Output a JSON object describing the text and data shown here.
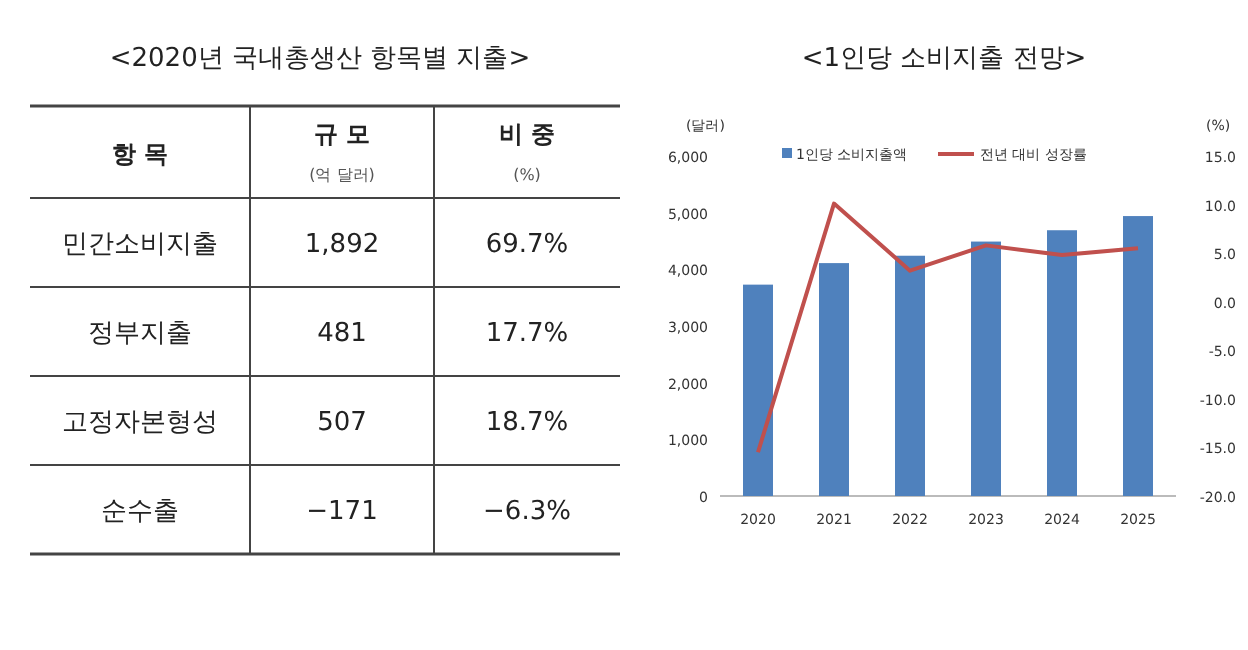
{
  "chart_data": [
    {
      "type": "other",
      "title": "<2020년 국내총생산 항목별 지출>",
      "xlabel": "항 목",
      "categories": [
        "민간소비지출",
        "정부지출",
        "고정자본형성",
        "순수출"
      ],
      "series": [
        {
          "name": "규 모",
          "values": [
            1892,
            481,
            507,
            -171
          ],
          "value_labels": [
            "1,892",
            "481",
            "507",
            "−171"
          ]
        },
        {
          "name": "비 중",
          "values": [
            69.7,
            17.7,
            18.7,
            -6.3
          ],
          "value_labels": [
            "69.7%",
            "17.7%",
            "18.7%",
            "−6.3%"
          ]
        }
      ],
      "annotations": [
        "(억 달러)",
        "(%)"
      ]
    },
    {
      "type": "bar",
      "title": "<1인당 소비지출 전망>",
      "ylabel": "(달러)",
      "y2label": "(%)",
      "categories": [
        "2020",
        "2021",
        "2022",
        "2023",
        "2024",
        "2025"
      ],
      "series": [
        {
          "name": "1인당 소비지출액",
          "color": "#4f81bd",
          "values": [
            3730,
            4110,
            4240,
            4490,
            4690,
            4940
          ]
        },
        {
          "name": "전년 대비 성장률",
          "type": "line",
          "axis": "y2",
          "color": "#c0504d",
          "values": [
            -15.5,
            10.1,
            3.2,
            5.8,
            4.8,
            5.5
          ]
        }
      ],
      "ylim": [
        0,
        6000
      ],
      "yticks": [
        0,
        {
          "value": 1000,
          "label": "1,000"
        },
        {
          "value": 2000,
          "label": "2,000"
        },
        {
          "value": 3000,
          "label": "3,000"
        },
        {
          "value": 4000,
          "label": "4,000"
        },
        {
          "value": 5000,
          "label": "5,000"
        },
        {
          "value": 6000,
          "label": "6,000"
        }
      ],
      "y2lim": [
        -20,
        15
      ],
      "y2ticks": [
        {
          "value": -20,
          "label": "-20.0"
        },
        {
          "value": -15,
          "label": "-15.0"
        },
        {
          "value": -10,
          "label": "-10.0"
        },
        {
          "value": -5,
          "label": "-5.0"
        },
        {
          "value": 0,
          "label": "0.0"
        },
        {
          "value": 5,
          "label": "5.0"
        },
        {
          "value": 10,
          "label": "10.0"
        },
        {
          "value": 15,
          "label": "15.0"
        }
      ],
      "legend": "top",
      "grid": false
    }
  ]
}
